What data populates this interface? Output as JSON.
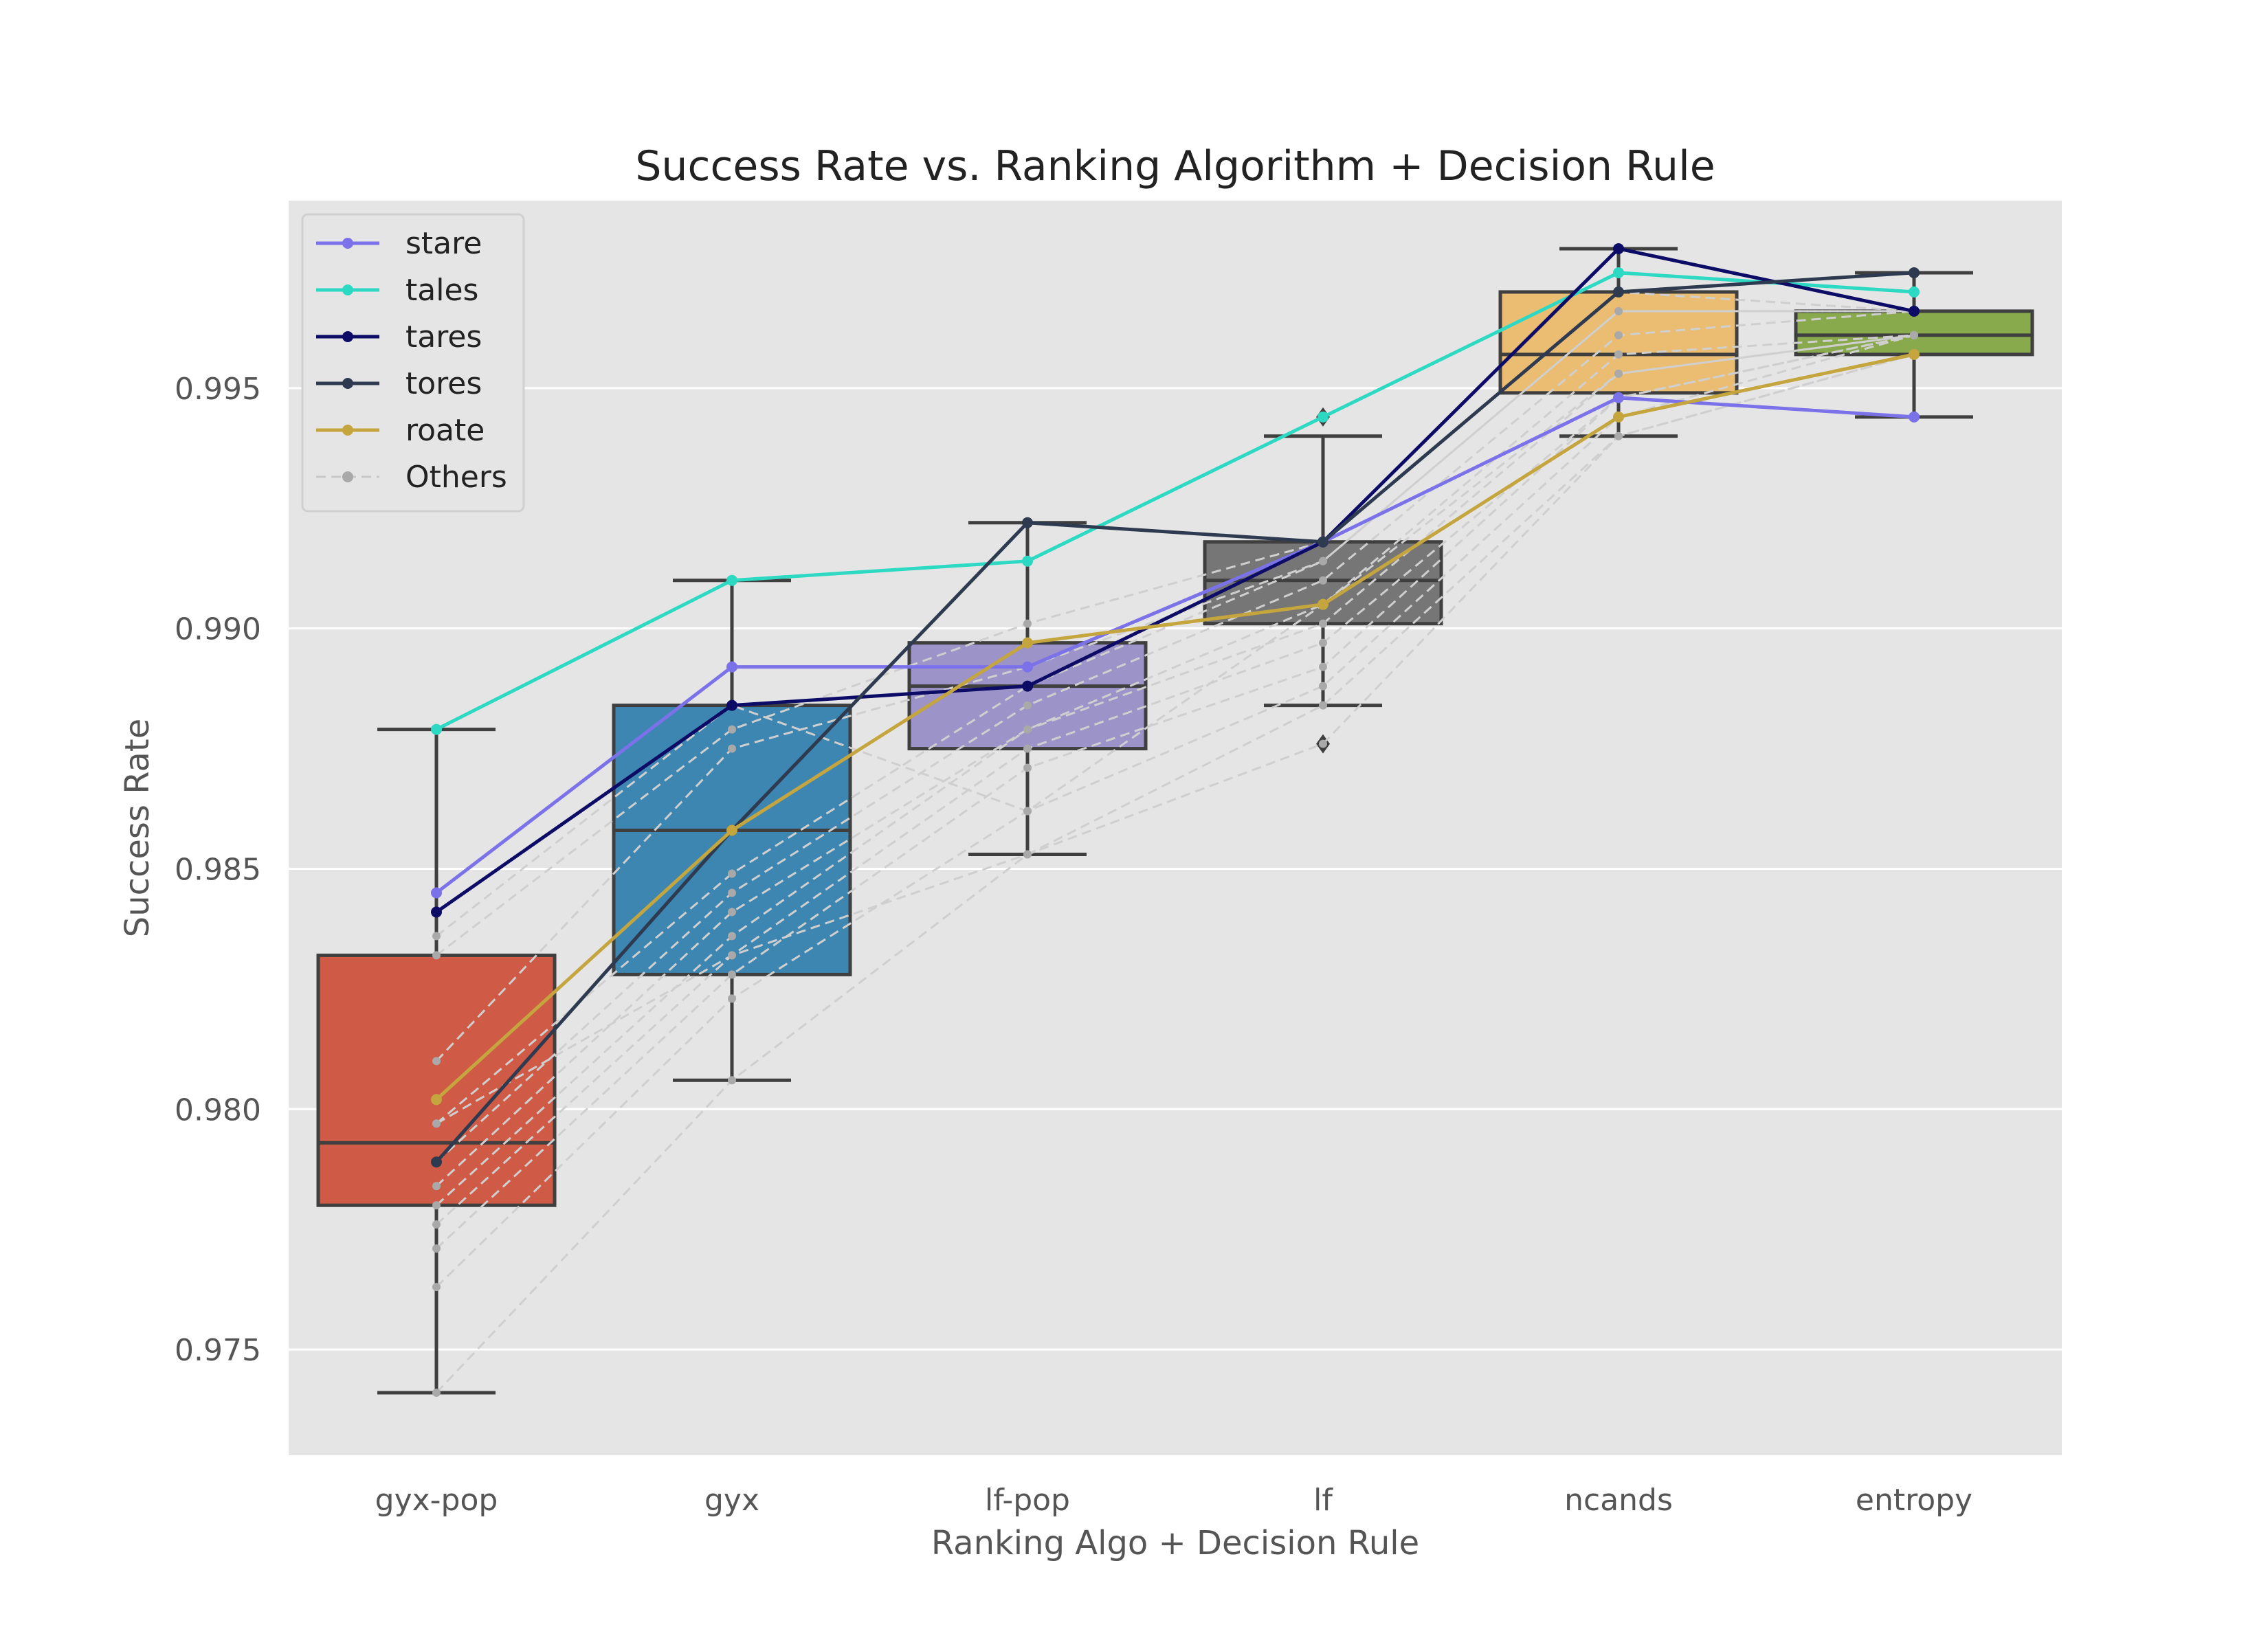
{
  "chart_data": {
    "type": "box",
    "title": "Success Rate vs. Ranking Algorithm + Decision Rule",
    "xlabel": "Ranking Algo + Decision Rule",
    "ylabel": "Success Rate",
    "categories": [
      "gyx-pop",
      "gyx",
      "lf-pop",
      "lf",
      "ncands",
      "entropy"
    ],
    "ylim": [
      0.9728,
      0.9989
    ],
    "yticks": [
      0.975,
      0.98,
      0.985,
      0.99,
      0.995
    ],
    "ytick_labels": [
      "0.975",
      "0.980",
      "0.985",
      "0.990",
      "0.995"
    ],
    "grid": true,
    "legend_position": "upper-left",
    "boxes": [
      {
        "category": "gyx-pop",
        "whisker_low": 0.9741,
        "q1": 0.978,
        "median": 0.9793,
        "q3": 0.9832,
        "whisker_high": 0.9879,
        "outliers": [],
        "color": "#cf5a45"
      },
      {
        "category": "gyx",
        "whisker_low": 0.9806,
        "q1": 0.9828,
        "median": 0.9858,
        "q3": 0.9884,
        "whisker_high": 0.991,
        "outliers": [],
        "color": "#3d86b1"
      },
      {
        "category": "lf-pop",
        "whisker_low": 0.9853,
        "q1": 0.9875,
        "median": 0.9888,
        "q3": 0.9897,
        "whisker_high": 0.9922,
        "outliers": [],
        "color": "#9c93c8"
      },
      {
        "category": "lf",
        "whisker_low": 0.9884,
        "q1": 0.9901,
        "median": 0.991,
        "q3": 0.9918,
        "whisker_high": 0.994,
        "outliers": [
          0.9944,
          0.9876
        ],
        "color": "#767676"
      },
      {
        "category": "ncands",
        "whisker_low": 0.994,
        "q1": 0.9949,
        "median": 0.9957,
        "q3": 0.997,
        "whisker_high": 0.9979,
        "outliers": [],
        "color": "#ebbd72"
      },
      {
        "category": "entropy",
        "whisker_low": 0.9944,
        "q1": 0.9957,
        "median": 0.9961,
        "q3": 0.9966,
        "whisker_high": 0.9974,
        "outliers": [],
        "color": "#88a94c"
      }
    ],
    "series": [
      {
        "name": "stare",
        "color": "#7b72e9",
        "values": [
          0.9845,
          0.9892,
          0.9892,
          0.9918,
          0.9948,
          0.9944
        ]
      },
      {
        "name": "tales",
        "color": "#2ed9c3",
        "values": [
          0.9879,
          0.991,
          0.9914,
          0.9944,
          0.9974,
          0.997
        ]
      },
      {
        "name": "tares",
        "color": "#0c0b66",
        "values": [
          0.9841,
          0.9884,
          0.9888,
          0.9918,
          0.9979,
          0.9966
        ]
      },
      {
        "name": "tores",
        "color": "#2d3a4f",
        "values": [
          0.9789,
          0.9858,
          0.9922,
          0.9918,
          0.997,
          0.9974
        ]
      },
      {
        "name": "roate",
        "color": "#c4a53e",
        "values": [
          0.9802,
          0.9858,
          0.9897,
          0.9905,
          0.9944,
          0.9957
        ]
      }
    ],
    "others_label": "Others",
    "others_color": "#cfcfcf",
    "others": [
      [
        0.9741,
        0.9806,
        0.9853,
        0.9884,
        0.994,
        0.9957
      ],
      [
        0.9763,
        0.9823,
        0.9862,
        0.9888,
        0.9944,
        0.9961
      ],
      [
        0.9771,
        0.9828,
        0.9871,
        0.9892,
        0.9948,
        0.9961
      ],
      [
        0.9776,
        0.9832,
        0.9875,
        0.9897,
        0.9948,
        0.9961
      ],
      [
        0.978,
        0.9836,
        0.9879,
        0.9901,
        0.9953,
        0.9961
      ],
      [
        0.9784,
        0.9841,
        0.9879,
        0.9905,
        0.9957,
        0.9961
      ],
      [
        0.9789,
        0.9845,
        0.9884,
        0.991,
        0.9961,
        0.9966
      ],
      [
        0.9797,
        0.9849,
        0.9888,
        0.9914,
        0.9966,
        0.9966
      ],
      [
        0.981,
        0.9875,
        0.9892,
        0.9914,
        0.9966,
        0.9966
      ],
      [
        0.9832,
        0.9879,
        0.9901,
        0.9918,
        0.997,
        0.9966
      ],
      [
        0.9836,
        0.9884,
        0.9862,
        0.9905,
        0.9953,
        0.9961
      ],
      [
        0.9797,
        0.9832,
        0.9853,
        0.9876,
        0.994,
        0.9957
      ]
    ]
  }
}
